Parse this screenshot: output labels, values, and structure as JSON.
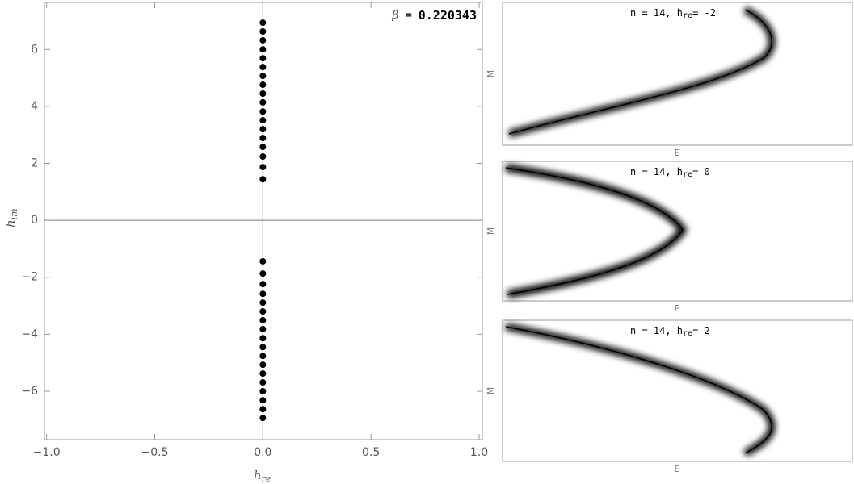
{
  "chart_data": [
    {
      "type": "scatter",
      "annotation": {
        "symbol": "β",
        "eq": "=",
        "value": "0.220343"
      },
      "x_label": {
        "base": "h",
        "sub": "re"
      },
      "y_label": {
        "base": "h",
        "sub": "im"
      },
      "color": "#000000",
      "x": [
        0,
        0,
        0,
        0,
        0,
        0,
        0,
        0,
        0,
        0,
        0,
        0,
        0,
        0,
        0,
        0,
        0,
        0,
        0,
        0,
        0,
        0,
        0,
        0,
        0,
        0,
        0,
        0,
        0,
        0,
        0,
        0,
        0,
        0,
        0,
        0
      ],
      "values": [
        6.94,
        6.63,
        6.32,
        6.0,
        5.69,
        5.38,
        5.07,
        4.76,
        4.45,
        4.14,
        3.82,
        3.51,
        3.2,
        2.89,
        2.58,
        2.24,
        1.87,
        1.44,
        -1.44,
        -1.87,
        -2.24,
        -2.58,
        -2.89,
        -3.2,
        -3.51,
        -3.82,
        -4.14,
        -4.45,
        -4.76,
        -5.07,
        -5.38,
        -5.69,
        -6.0,
        -6.32,
        -6.63,
        -6.94
      ],
      "xlim": [
        -1.01,
        1.015
      ],
      "ylim": [
        -7.7,
        7.65
      ],
      "xticks": [
        {
          "value": -1,
          "label": "−1.0"
        },
        {
          "value": -0.5,
          "label": "−0.5"
        },
        {
          "value": 0,
          "label": "0.0"
        },
        {
          "value": 0.5,
          "label": "0.5"
        },
        {
          "value": 1,
          "label": "1.0"
        }
      ],
      "yticks": [
        {
          "value": -6,
          "label": "−6"
        },
        {
          "value": -4,
          "label": "−4"
        },
        {
          "value": -2,
          "label": "−2"
        },
        0,
        2,
        4,
        6
      ]
    },
    {
      "type": "density",
      "title": {
        "prefix": "n = 14, h",
        "sub": "re",
        "suffix": "= -2"
      },
      "x_label": "E",
      "y_label": "M"
    },
    {
      "type": "density",
      "title": {
        "prefix": "n = 14, h",
        "sub": "re",
        "suffix": "= 0"
      },
      "x_label": "E",
      "y_label": "M"
    },
    {
      "type": "density",
      "title": {
        "prefix": "n = 14, h",
        "sub": "re",
        "suffix": "= 2"
      },
      "x_label": "E",
      "y_label": "M"
    }
  ]
}
